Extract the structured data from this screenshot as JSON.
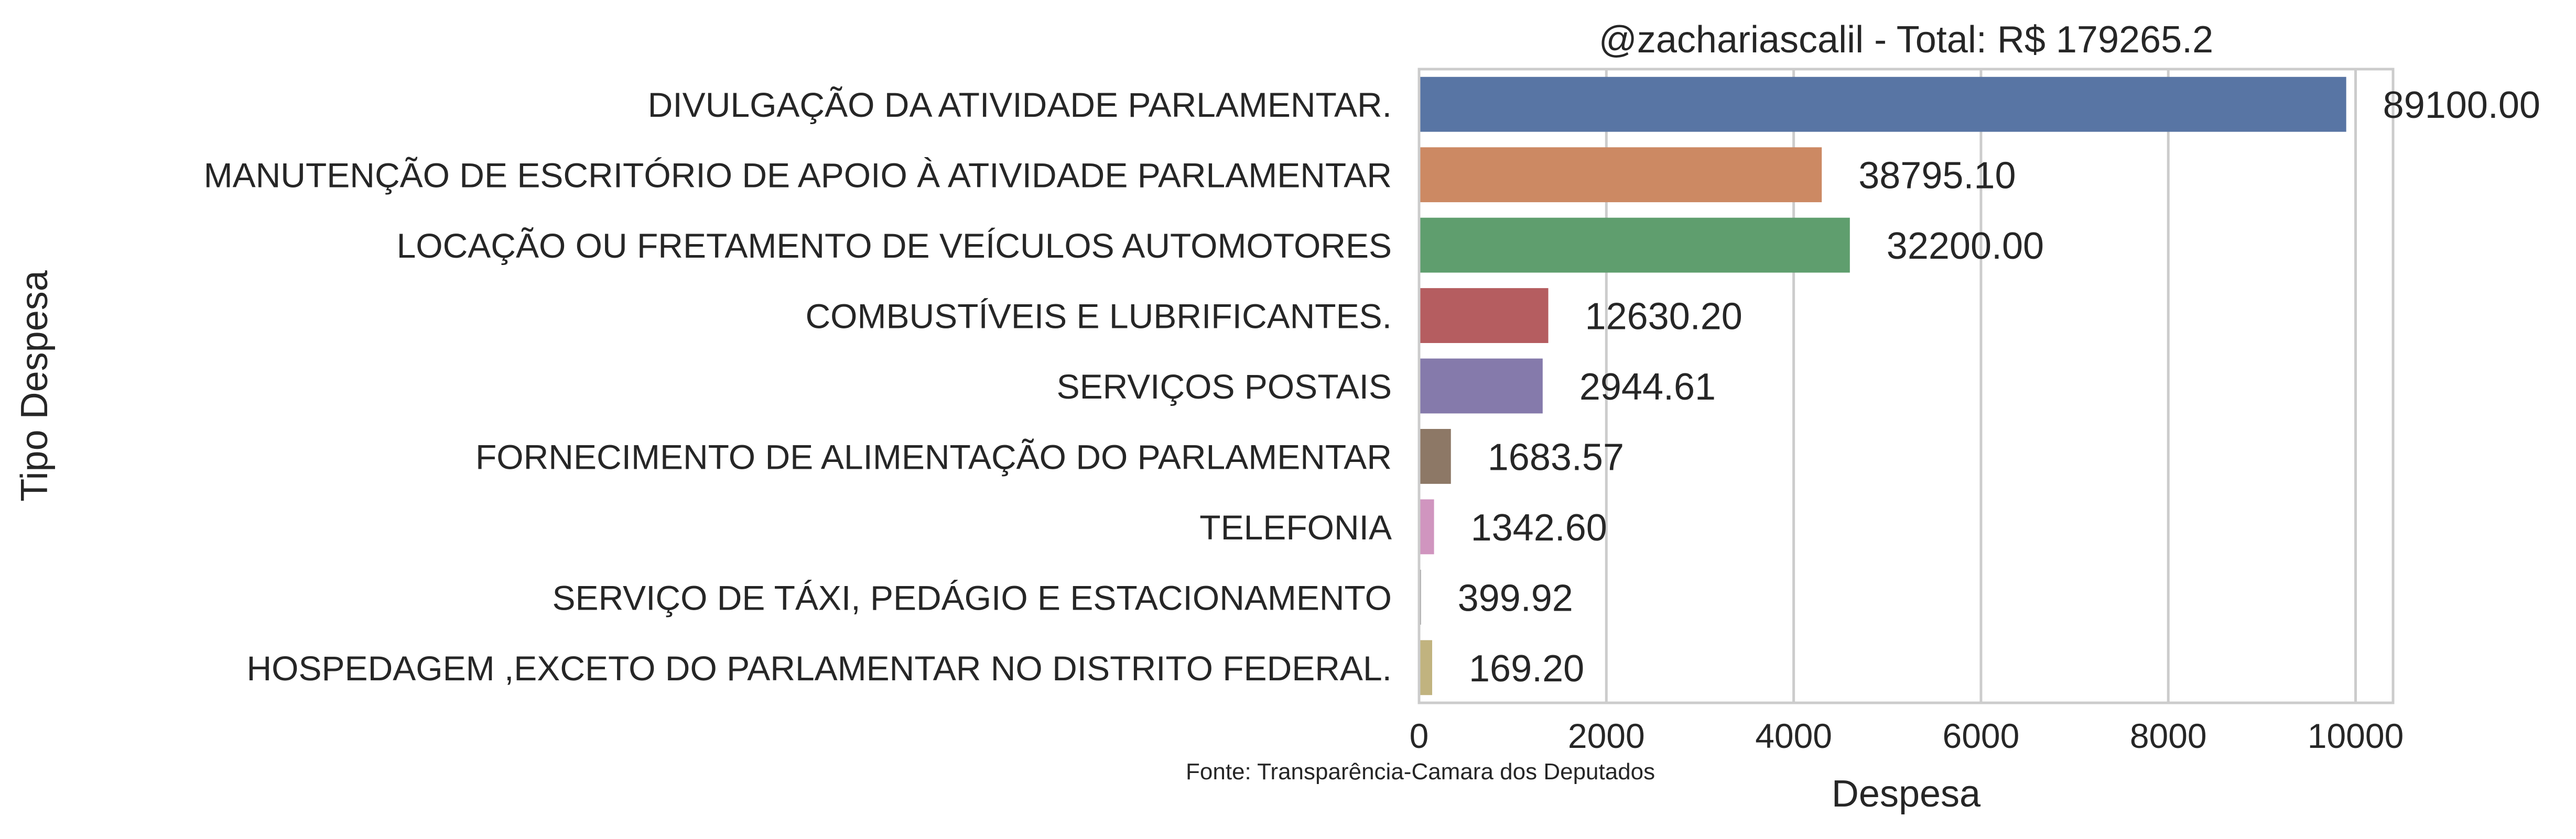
{
  "chart_data": {
    "type": "bar",
    "orientation": "horizontal",
    "title": "@zachariascalil - Total: R$ 179265.2",
    "xlabel": "Despesa",
    "ylabel": "Tipo Despesa",
    "xlim": [
      0,
      10400
    ],
    "x_ticks": [
      0,
      2000,
      4000,
      6000,
      8000,
      10000
    ],
    "grid": "vertical",
    "source_note": "Fonte: Transparência-Camara dos Deputados",
    "categories": [
      "DIVULGAÇÃO DA ATIVIDADE PARLAMENTAR.",
      "MANUTENÇÃO DE ESCRITÓRIO DE APOIO À ATIVIDADE PARLAMENTAR",
      "LOCAÇÃO OU FRETAMENTO DE VEÍCULOS AUTOMOTORES",
      "COMBUSTÍVEIS E LUBRIFICANTES.",
      "SERVIÇOS POSTAIS",
      "FORNECIMENTO DE ALIMENTAÇÃO DO PARLAMENTAR",
      "TELEFONIA",
      "SERVIÇO DE TÁXI, PEDÁGIO E ESTACIONAMENTO",
      "HOSPEDAGEM ,EXCETO DO PARLAMENTAR NO DISTRITO FEDERAL."
    ],
    "values": [
      9900,
      4300,
      4600,
      1380,
      1320,
      340,
      160,
      20,
      140
    ],
    "data_labels": [
      "89100.00",
      "38795.10",
      "32200.00",
      "12630.20",
      "2944.61",
      "1683.57",
      "1342.60",
      "399.92",
      "169.20"
    ],
    "colors": [
      "#5875a4",
      "#cc8963",
      "#5f9e6e",
      "#b55d60",
      "#857aab",
      "#8d7866",
      "#d095bf",
      "#8c8c8c",
      "#c1b37f"
    ]
  }
}
